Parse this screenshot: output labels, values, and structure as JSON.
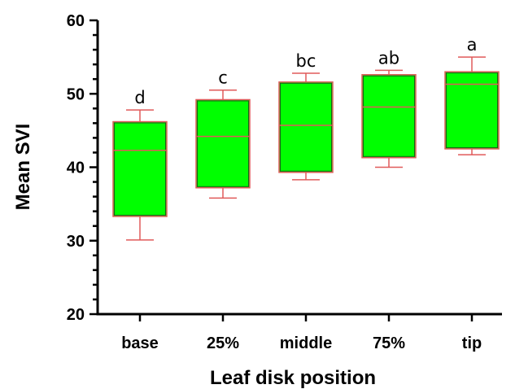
{
  "chart_data": {
    "type": "box",
    "xlabel": "Leaf disk position",
    "ylabel": "Mean SVI",
    "ylim": [
      20,
      60
    ],
    "yticks": [
      20,
      30,
      40,
      50,
      60
    ],
    "grid": false,
    "colors": {
      "box_fill": "#00ff00",
      "box_stroke": "#e05a5a",
      "axis": "#000000"
    },
    "categories": [
      "base",
      "25%",
      "middle",
      "75%",
      "tip"
    ],
    "boxes": [
      {
        "category": "base",
        "min": 30.1,
        "q1": 33.3,
        "median": 42.3,
        "q3": 46.2,
        "max": 47.8,
        "letter": "d"
      },
      {
        "category": "25%",
        "min": 35.8,
        "q1": 37.2,
        "median": 44.2,
        "q3": 49.2,
        "max": 50.5,
        "letter": "c"
      },
      {
        "category": "middle",
        "min": 38.3,
        "q1": 39.3,
        "median": 45.7,
        "q3": 51.6,
        "max": 52.8,
        "letter": "bc"
      },
      {
        "category": "75%",
        "min": 40.0,
        "q1": 41.3,
        "median": 48.2,
        "q3": 52.6,
        "max": 53.2,
        "letter": "ab"
      },
      {
        "category": "tip",
        "min": 41.7,
        "q1": 42.5,
        "median": 51.3,
        "q3": 53.0,
        "max": 55.0,
        "letter": "a"
      }
    ]
  }
}
